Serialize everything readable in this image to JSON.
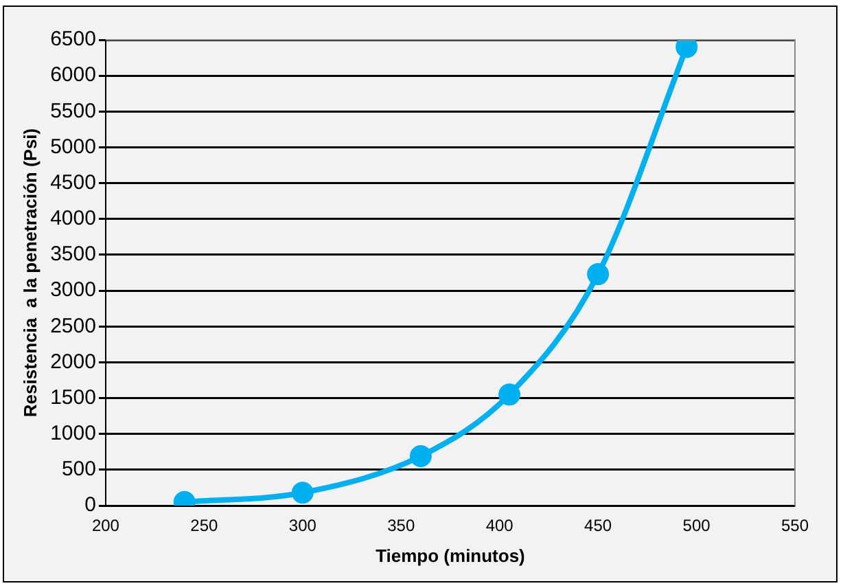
{
  "chart_data": {
    "type": "line",
    "xlabel": "Tiempo (minutos)",
    "ylabel": "Resistencia  a la penetración (Psi)",
    "x": [
      240,
      300,
      360,
      405,
      450,
      495
    ],
    "series": [
      {
        "color": "#00b0f0",
        "values": [
          50,
          180,
          690,
          1550,
          3230,
          6400
        ]
      }
    ],
    "xlim": [
      200,
      550
    ],
    "xticks": [
      200,
      250,
      300,
      350,
      400,
      450,
      500,
      550
    ],
    "ylim": [
      0,
      6500
    ],
    "yticks": [
      0,
      500,
      1000,
      1500,
      2000,
      2500,
      3000,
      3500,
      4000,
      4500,
      5000,
      5500,
      6000,
      6500
    ],
    "grid": "y",
    "marker": "circle",
    "line_style": "solid",
    "legend": false
  }
}
